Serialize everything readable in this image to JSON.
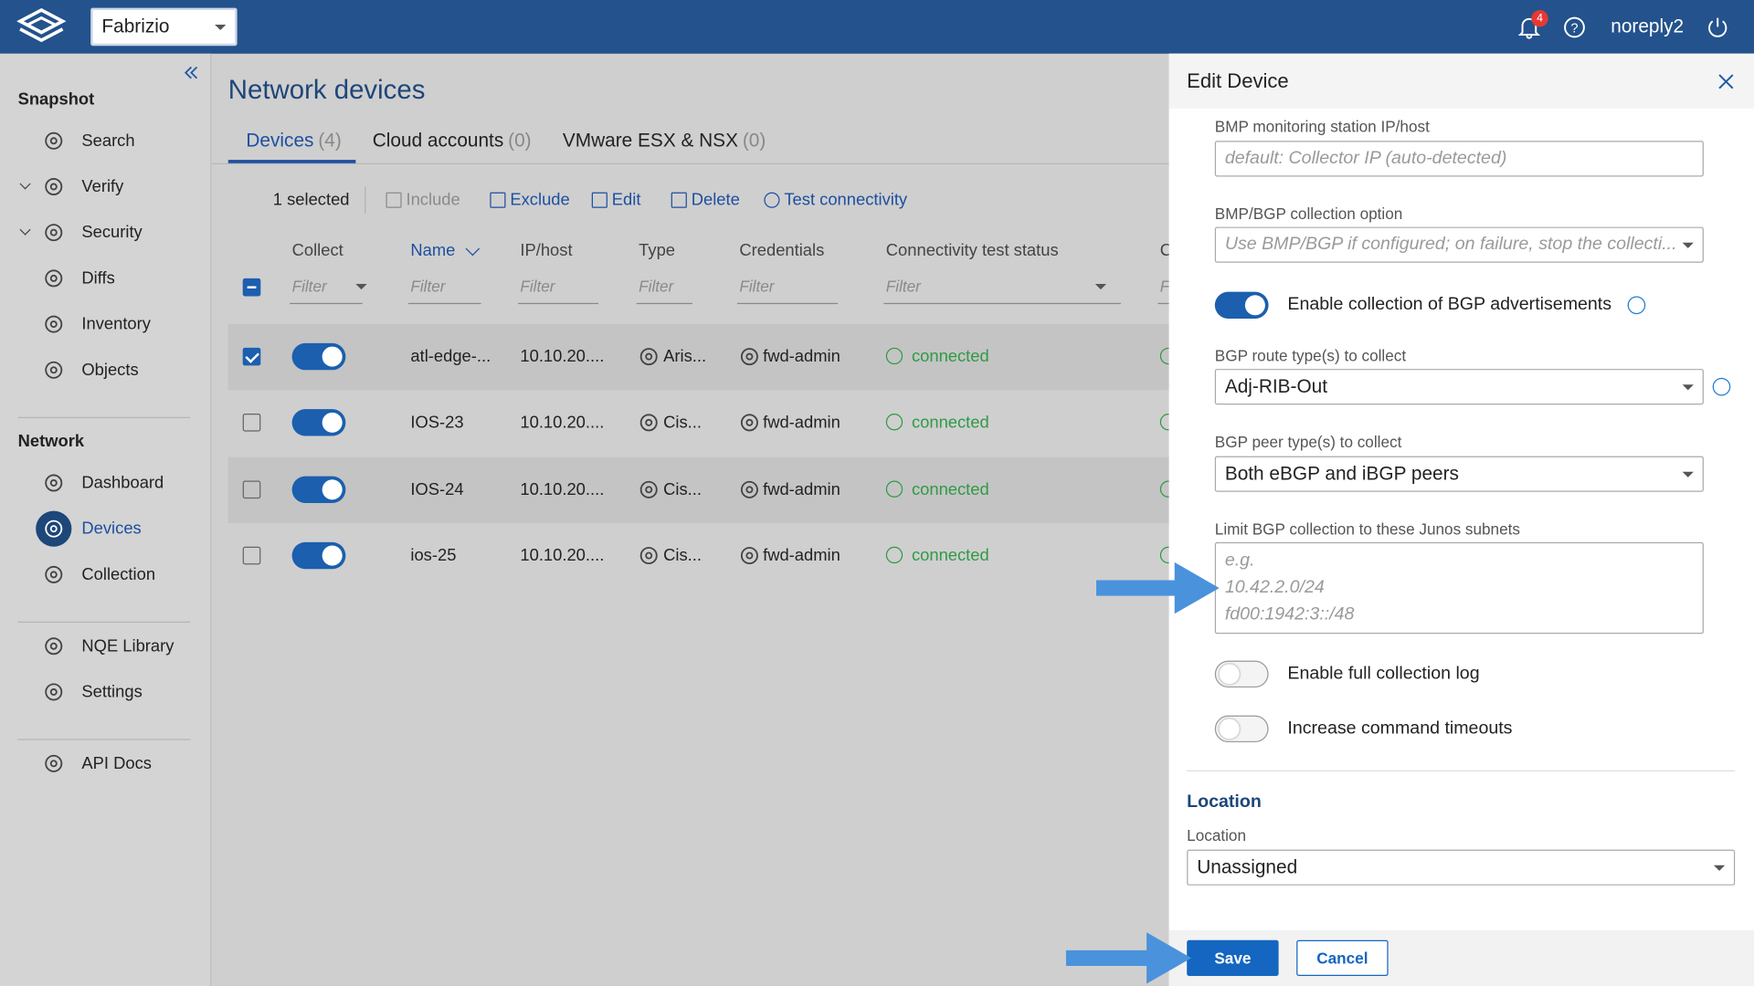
{
  "header": {
    "workspace": "Fabrizio",
    "notifications": "4",
    "user": "noreply2"
  },
  "sidebar": {
    "groups": [
      {
        "title": "Snapshot",
        "items": [
          {
            "label": "Search"
          },
          {
            "label": "Verify",
            "expandable": true
          },
          {
            "label": "Security",
            "expandable": true
          },
          {
            "label": "Diffs"
          },
          {
            "label": "Inventory"
          },
          {
            "label": "Objects"
          }
        ]
      },
      {
        "title": "Network",
        "items": [
          {
            "label": "Dashboard"
          },
          {
            "label": "Devices",
            "active": true
          },
          {
            "label": "Collection"
          }
        ]
      },
      {
        "items": [
          {
            "label": "NQE Library"
          },
          {
            "label": "Settings"
          }
        ]
      },
      {
        "items": [
          {
            "label": "API Docs"
          }
        ]
      }
    ]
  },
  "main": {
    "title": "Network devices",
    "tabs": [
      {
        "label": "Devices",
        "count": "(4)",
        "active": true
      },
      {
        "label": "Cloud accounts",
        "count": "(0)"
      },
      {
        "label": "VMware ESX & NSX",
        "count": "(0)"
      }
    ],
    "toolbar": {
      "selected": "1 selected",
      "actions": [
        "Include",
        "Exclude",
        "Edit",
        "Delete",
        "Test connectivity"
      ]
    },
    "columns": [
      {
        "label": "Collect",
        "filter": "Filter"
      },
      {
        "label": "Name",
        "filter": "Filter"
      },
      {
        "label": "IP/host",
        "filter": "Filter"
      },
      {
        "label": "Type",
        "filter": "Filter"
      },
      {
        "label": "Credentials",
        "filter": "Filter"
      },
      {
        "label": "Connectivity test status",
        "filter": "Filter"
      },
      {
        "label": "C",
        "filter": "F"
      }
    ],
    "rows": [
      {
        "selected": true,
        "collect": true,
        "name": "atl-edge-...",
        "ip": "10.10.20....",
        "type": "Aris...",
        "credentials": "fwd-admin",
        "status": "connected"
      },
      {
        "selected": false,
        "collect": true,
        "name": "IOS-23",
        "ip": "10.10.20....",
        "type": "Cis...",
        "credentials": "fwd-admin",
        "status": "connected"
      },
      {
        "selected": false,
        "collect": true,
        "name": "IOS-24",
        "ip": "10.10.20....",
        "type": "Cis...",
        "credentials": "fwd-admin",
        "status": "connected"
      },
      {
        "selected": false,
        "collect": true,
        "name": "ios-25",
        "ip": "10.10.20....",
        "type": "Cis...",
        "credentials": "fwd-admin",
        "status": "connected"
      }
    ]
  },
  "panel": {
    "title": "Edit Device",
    "bmp_host": {
      "label": "BMP monitoring station IP/host",
      "placeholder": "default: Collector IP (auto-detected)"
    },
    "bmp_option": {
      "label": "BMP/BGP collection option",
      "placeholder": "Use BMP/BGP if configured; on failure, stop the collecti..."
    },
    "bgp_adv": {
      "label": "Enable collection of BGP advertisements",
      "on": true
    },
    "route_type": {
      "label": "BGP route type(s) to collect",
      "value": "Adj-RIB-Out"
    },
    "peer_type": {
      "label": "BGP peer type(s) to collect",
      "value": "Both eBGP and iBGP peers"
    },
    "subnets": {
      "label": "Limit BGP collection to these Junos subnets",
      "placeholder": [
        "e.g.",
        "10.42.2.0/24",
        "fd00:1942:3::/48"
      ]
    },
    "full_log": {
      "label": "Enable full collection log",
      "on": false
    },
    "timeouts": {
      "label": "Increase command timeouts",
      "on": false
    },
    "location_section": "Location",
    "location": {
      "label": "Location",
      "value": "Unassigned"
    },
    "save": "Save",
    "cancel": "Cancel"
  }
}
